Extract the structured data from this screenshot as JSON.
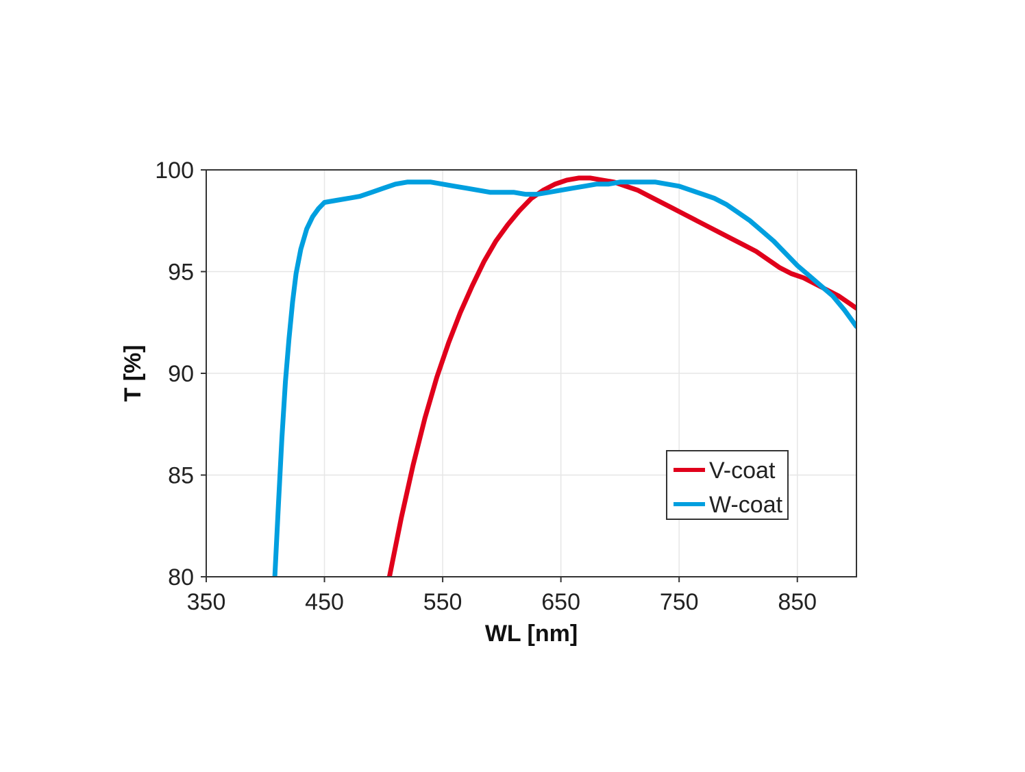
{
  "chart_data": {
    "type": "line",
    "title": "",
    "xlabel": "WL [nm]",
    "ylabel": "T [%]",
    "xlim": [
      350,
      900
    ],
    "ylim": [
      80,
      100
    ],
    "xticks": [
      350,
      450,
      550,
      650,
      750,
      850
    ],
    "yticks": [
      80,
      85,
      90,
      95,
      100
    ],
    "grid": true,
    "legend_position": "bottom-right",
    "series": [
      {
        "name": "V-coat",
        "color": "#e0001b",
        "x": [
          505,
          515,
          525,
          535,
          545,
          555,
          565,
          575,
          585,
          595,
          605,
          615,
          625,
          635,
          645,
          655,
          665,
          675,
          685,
          695,
          705,
          715,
          725,
          735,
          745,
          755,
          765,
          775,
          785,
          795,
          805,
          815,
          825,
          835,
          845,
          855,
          865,
          875,
          885,
          895,
          900
        ],
        "y": [
          80.0,
          82.9,
          85.5,
          87.8,
          89.8,
          91.5,
          93.0,
          94.3,
          95.5,
          96.5,
          97.3,
          98.0,
          98.6,
          99.0,
          99.3,
          99.5,
          99.6,
          99.6,
          99.5,
          99.4,
          99.2,
          99.0,
          98.7,
          98.4,
          98.1,
          97.8,
          97.5,
          97.2,
          96.9,
          96.6,
          96.3,
          96.0,
          95.6,
          95.2,
          94.9,
          94.7,
          94.4,
          94.1,
          93.8,
          93.4,
          93.2
        ]
      },
      {
        "name": "W-coat",
        "color": "#009fdf",
        "x": [
          408,
          411,
          414,
          417,
          420,
          423,
          426,
          430,
          435,
          440,
          445,
          450,
          460,
          470,
          480,
          490,
          500,
          510,
          520,
          530,
          540,
          550,
          560,
          570,
          580,
          590,
          600,
          610,
          620,
          630,
          640,
          650,
          660,
          670,
          680,
          690,
          700,
          710,
          720,
          730,
          740,
          750,
          760,
          770,
          780,
          790,
          800,
          810,
          820,
          830,
          840,
          850,
          860,
          870,
          880,
          890,
          900
        ],
        "y": [
          80.0,
          83.5,
          86.8,
          89.6,
          91.7,
          93.5,
          94.9,
          96.1,
          97.1,
          97.7,
          98.1,
          98.4,
          98.5,
          98.6,
          98.7,
          98.9,
          99.1,
          99.3,
          99.4,
          99.4,
          99.4,
          99.3,
          99.2,
          99.1,
          99.0,
          98.9,
          98.9,
          98.9,
          98.8,
          98.8,
          98.9,
          99.0,
          99.1,
          99.2,
          99.3,
          99.3,
          99.4,
          99.4,
          99.4,
          99.4,
          99.3,
          99.2,
          99.0,
          98.8,
          98.6,
          98.3,
          97.9,
          97.5,
          97.0,
          96.5,
          95.9,
          95.3,
          94.8,
          94.3,
          93.8,
          93.1,
          92.3
        ]
      }
    ]
  }
}
